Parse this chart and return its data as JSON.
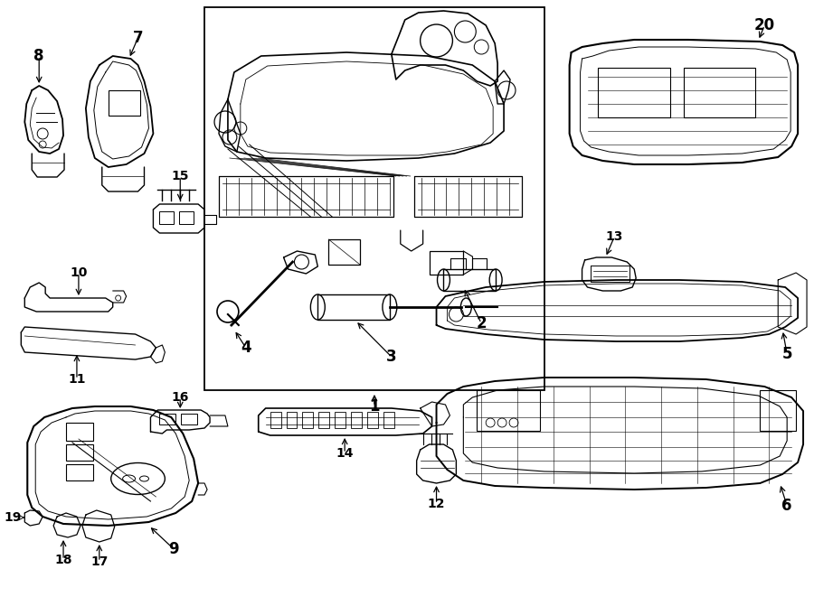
{
  "bg": "#ffffff",
  "lc": "#000000",
  "fw": 9.0,
  "fh": 6.61,
  "dpi": 100
}
